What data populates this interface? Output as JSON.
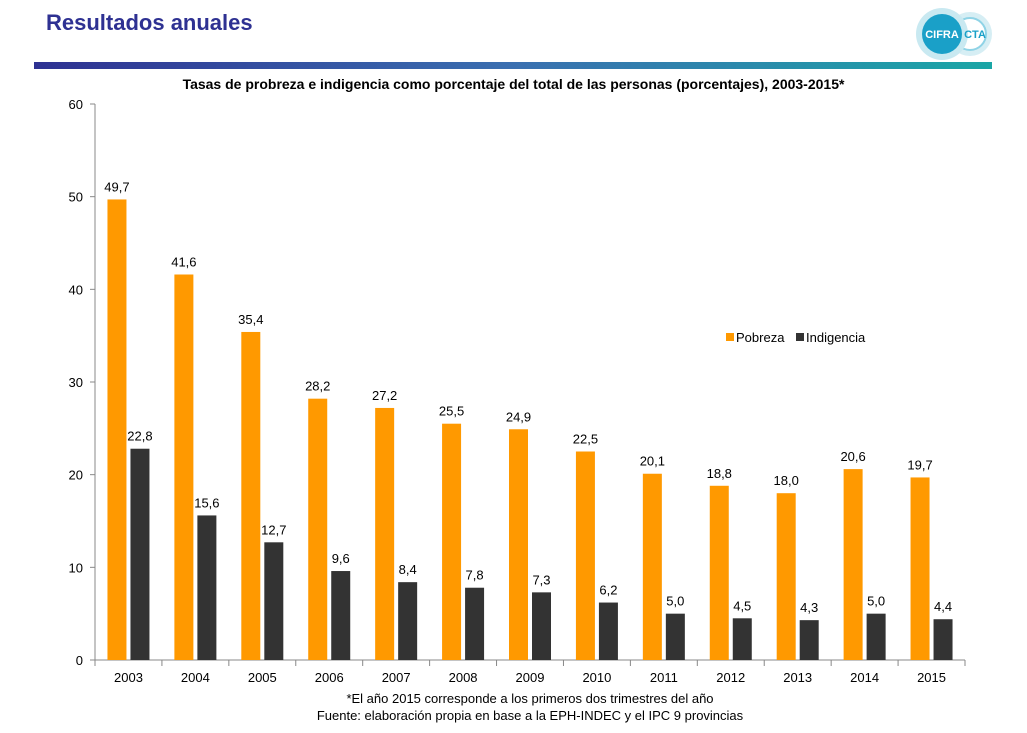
{
  "header": {
    "title": "Resultados anuales",
    "logo": {
      "left_text": "CIFRA",
      "right_text": "CTA"
    }
  },
  "colors": {
    "pobreza": "#ff9900",
    "indigencia": "#333333",
    "header_title": "#2e3192"
  },
  "footnotes": {
    "note": "*El año 2015 corresponde a los primeros dos trimestres del año",
    "source": "Fuente: elaboración propia en base a la EPH-INDEC y el IPC 9 provincias"
  },
  "chart_data": {
    "type": "bar",
    "title": "Tasas de probreza e indigencia como porcentaje del total de las personas (porcentajes), 2003-2015*",
    "xlabel": "",
    "ylabel": "",
    "ylim": [
      0,
      60
    ],
    "yticks": [
      0,
      10,
      20,
      30,
      40,
      50,
      60
    ],
    "grid": false,
    "legend_position": "right",
    "categories": [
      "2003",
      "2004",
      "2005",
      "2006",
      "2007",
      "2008",
      "2009",
      "2010",
      "2011",
      "2012",
      "2013",
      "2014",
      "2015"
    ],
    "series": [
      {
        "name": "Pobreza",
        "color": "#ff9900",
        "values": [
          49.7,
          41.6,
          35.4,
          28.2,
          27.2,
          25.5,
          24.9,
          22.5,
          20.1,
          18.8,
          18.0,
          20.6,
          19.7
        ],
        "labels": [
          "49,7",
          "41,6",
          "35,4",
          "28,2",
          "27,2",
          "25,5",
          "24,9",
          "22,5",
          "20,1",
          "18,8",
          "18,0",
          "20,6",
          "19,7"
        ]
      },
      {
        "name": "Indigencia",
        "color": "#333333",
        "values": [
          22.8,
          15.6,
          12.7,
          9.6,
          8.4,
          7.8,
          7.3,
          6.2,
          5.0,
          4.5,
          4.3,
          5.0,
          4.4
        ],
        "labels": [
          "22,8",
          "15,6",
          "12,7",
          "9,6",
          "8,4",
          "7,8",
          "7,3",
          "6,2",
          "5,0",
          "4,5",
          "4,3",
          "5,0",
          "4,4"
        ]
      }
    ]
  }
}
